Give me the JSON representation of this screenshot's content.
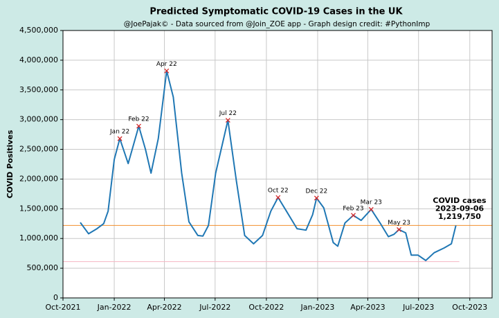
{
  "chart_data": {
    "type": "line",
    "title": "Predicted Symptomatic COVID-19 Cases in the UK",
    "subtitle": "@JoePajak© - Data sourced from @Join_ZOE app - Graph design credit: #PythonImp",
    "y_label": "COVID Positives",
    "x": [
      "2021-11-01",
      "2021-11-16",
      "2021-12-01",
      "2021-12-13",
      "2021-12-21",
      "2022-01-01",
      "2022-01-11",
      "2022-01-26",
      "2022-02-14",
      "2022-02-26",
      "2022-03-08",
      "2022-03-21",
      "2022-04-05",
      "2022-04-17",
      "2022-05-02",
      "2022-05-15",
      "2022-05-31",
      "2022-06-09",
      "2022-06-19",
      "2022-07-02",
      "2022-07-24",
      "2022-08-08",
      "2022-08-23",
      "2022-09-08",
      "2022-09-24",
      "2022-10-09",
      "2022-10-22",
      "2022-11-06",
      "2022-11-25",
      "2022-12-11",
      "2022-12-23",
      "2022-12-30",
      "2023-01-12",
      "2023-01-29",
      "2023-02-06",
      "2023-02-19",
      "2023-03-06",
      "2023-03-20",
      "2023-04-07",
      "2023-04-23",
      "2023-05-08",
      "2023-05-18",
      "2023-05-27",
      "2023-06-08",
      "2023-06-18",
      "2023-06-30",
      "2023-07-14",
      "2023-07-29",
      "2023-08-16",
      "2023-08-29",
      "2023-09-06"
    ],
    "series": [
      {
        "name": "COVID Positives",
        "color": "#1f77b4",
        "values": [
          1270000,
          1080000,
          1165000,
          1250000,
          1460000,
          2330000,
          2680000,
          2260000,
          2890000,
          2500000,
          2100000,
          2680000,
          3820000,
          3380000,
          2100000,
          1280000,
          1050000,
          1040000,
          1220000,
          2100000,
          2990000,
          1980000,
          1050000,
          910000,
          1050000,
          1460000,
          1690000,
          1460000,
          1165000,
          1140000,
          1400000,
          1680000,
          1515000,
          930000,
          870000,
          1260000,
          1390000,
          1305000,
          1490000,
          1260000,
          1030000,
          1070000,
          1150000,
          1095000,
          720000,
          720000,
          630000,
          760000,
          840000,
          910000,
          1219750
        ]
      }
    ],
    "annotations": [
      {
        "text": "Jan 22",
        "x": "2022-01-11",
        "y": 2680000
      },
      {
        "text": "Feb 22",
        "x": "2022-02-14",
        "y": 2890000
      },
      {
        "text": "Apr 22",
        "x": "2022-04-05",
        "y": 3820000
      },
      {
        "text": "Jul 22",
        "x": "2022-07-24",
        "y": 2990000
      },
      {
        "text": "Oct 22",
        "x": "2022-10-22",
        "y": 1690000
      },
      {
        "text": "Dec 22",
        "x": "2022-12-30",
        "y": 1680000
      },
      {
        "text": "Feb 23",
        "x": "2023-03-06",
        "y": 1390000
      },
      {
        "text": "Mar 23",
        "x": "2023-04-07",
        "y": 1490000
      },
      {
        "text": "May 23",
        "x": "2023-05-27",
        "y": 1150000
      }
    ],
    "latest_note": [
      "COVID cases",
      "2023-09-06",
      "1,219,750"
    ],
    "hlines": [
      {
        "value": 1219750,
        "color": "#f28e2b"
      },
      {
        "value": 610000,
        "color": "#f4b6c2"
      }
    ],
    "xlim": [
      "2021-10-01",
      "2023-11-10"
    ],
    "xticks": [
      {
        "value": "2021-10-01",
        "label": "Oct-2021"
      },
      {
        "value": "2022-01-01",
        "label": "Jan-2022"
      },
      {
        "value": "2022-04-01",
        "label": "Apr-2022"
      },
      {
        "value": "2022-07-01",
        "label": "Jul-2022"
      },
      {
        "value": "2022-10-01",
        "label": "Oct-2022"
      },
      {
        "value": "2023-01-01",
        "label": "Jan-2023"
      },
      {
        "value": "2023-04-01",
        "label": "Apr-2023"
      },
      {
        "value": "2023-07-01",
        "label": "Jul-2023"
      },
      {
        "value": "2023-10-01",
        "label": "Oct-2023"
      }
    ],
    "ylim": [
      0,
      4500000
    ],
    "yticks": [
      0,
      {
        "value": 500000,
        "label": "500,000"
      },
      {
        "value": 1000000,
        "label": "1,000,000"
      },
      {
        "value": 1500000,
        "label": "1,500,000"
      },
      {
        "value": 2000000,
        "label": "2,000,000"
      },
      {
        "value": 2500000,
        "label": "2,500,000"
      },
      {
        "value": 3000000,
        "label": "3,000,000"
      },
      {
        "value": 3500000,
        "label": "3,500,000"
      },
      {
        "value": 4000000,
        "label": "4,000,000"
      },
      {
        "value": 4500000,
        "label": "4,500,000"
      }
    ],
    "grid": true
  }
}
